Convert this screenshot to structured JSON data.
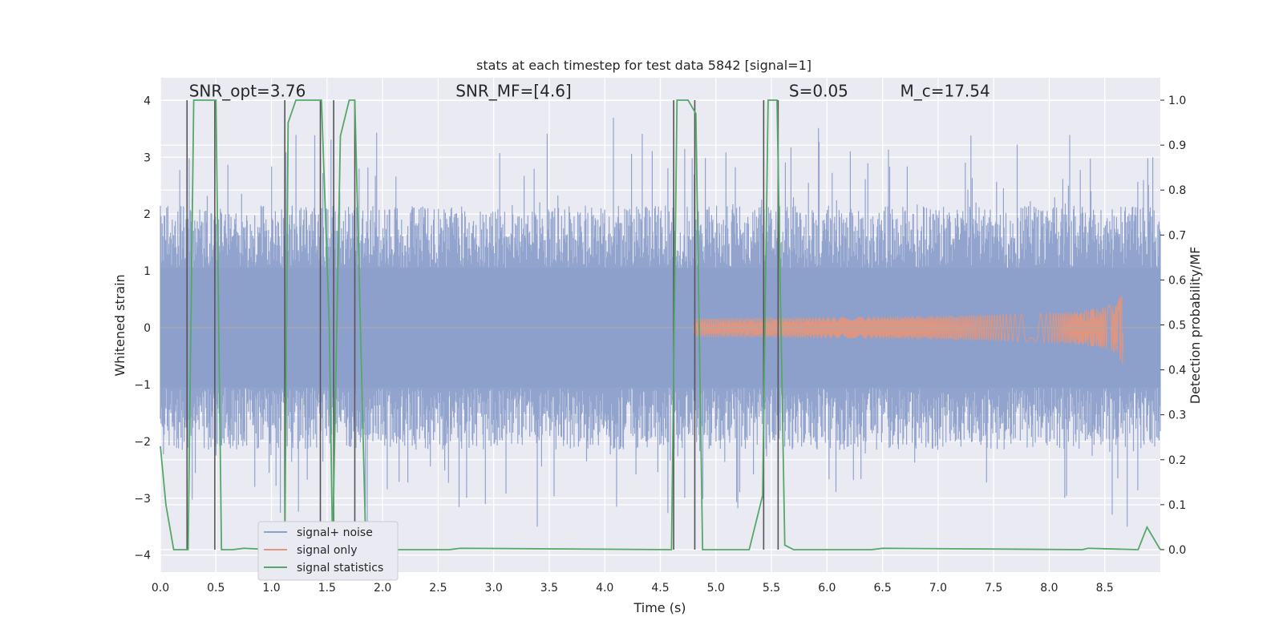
{
  "chart_data": {
    "type": "line",
    "title": "stats at each timestep for test data 5842 [signal=1]",
    "xlabel": "Time (s)",
    "ylabel": "Whitened strain",
    "y2label": "Detection probability/MF",
    "xlim": [
      0.0,
      9.0
    ],
    "ylim": [
      -4.3,
      4.4
    ],
    "y2lim": [
      -0.05,
      1.05
    ],
    "xticks": [
      "0.0",
      "0.5",
      "1.0",
      "1.5",
      "2.0",
      "2.5",
      "3.0",
      "3.5",
      "4.0",
      "4.5",
      "5.0",
      "5.5",
      "6.0",
      "6.5",
      "7.0",
      "7.5",
      "8.0",
      "8.5"
    ],
    "xtick_values": [
      0.0,
      0.5,
      1.0,
      1.5,
      2.0,
      2.5,
      3.0,
      3.5,
      4.0,
      4.5,
      5.0,
      5.5,
      6.0,
      6.5,
      7.0,
      7.5,
      8.0,
      8.5
    ],
    "yticks": [
      "−4",
      "−3",
      "−2",
      "−1",
      "0",
      "1",
      "2",
      "3",
      "4"
    ],
    "ytick_values": [
      -4,
      -3,
      -2,
      -1,
      0,
      1,
      2,
      3,
      4
    ],
    "y2ticks": [
      "0.0",
      "0.1",
      "0.2",
      "0.3",
      "0.4",
      "0.5",
      "0.6",
      "0.7",
      "0.8",
      "0.9",
      "1.0"
    ],
    "y2tick_values": [
      0.0,
      0.1,
      0.2,
      0.3,
      0.4,
      0.5,
      0.6,
      0.7,
      0.8,
      0.9,
      1.0
    ],
    "grid": true,
    "legend_position": "lower-left",
    "annotations": [
      {
        "label": "SNR_opt=3.76",
        "x": 0.2,
        "y": 4.1
      },
      {
        "label": "SNR_MF=[4.6]",
        "x": 2.6,
        "y": 4.1
      },
      {
        "label": "S=0.05",
        "x": 5.6,
        "y": 4.1
      },
      {
        "label": "M_c=17.54",
        "x": 6.6,
        "y": 4.1
      }
    ],
    "series": [
      {
        "name": "signal+ noise",
        "color": "#8da0cb",
        "kind": "noise",
        "x_range": [
          0.0,
          9.0
        ],
        "typical_peak": 2.2,
        "max_peak": 4.0
      },
      {
        "name": "signal only",
        "color": "#e5957a",
        "kind": "chirp",
        "x_start": 4.8,
        "x_end": 8.67,
        "peak_amplitude": 0.8
      },
      {
        "name": "signal statistics",
        "color": "#55a868",
        "axis": "right",
        "x": [
          0.0,
          0.05,
          0.12,
          0.25,
          0.3,
          0.5,
          0.55,
          0.65,
          0.75,
          1.0,
          1.12,
          1.15,
          1.22,
          1.45,
          1.52,
          1.55,
          1.62,
          1.7,
          1.75,
          1.85,
          2.0,
          2.6,
          2.7,
          4.6,
          4.65,
          4.75,
          4.82,
          4.88,
          5.3,
          5.42,
          5.47,
          5.55,
          5.62,
          5.7,
          6.4,
          6.5,
          8.3,
          8.35,
          8.8,
          8.88,
          9.0
        ],
        "y": [
          0.23,
          0.1,
          0.0,
          0.0,
          1.0,
          1.0,
          0.0,
          0.0,
          0.003,
          0.0,
          0.0,
          0.95,
          1.0,
          1.0,
          0.5,
          0.0,
          0.92,
          1.0,
          1.0,
          0.0,
          0.0,
          0.0,
          0.003,
          0.0,
          1.0,
          1.0,
          0.97,
          0.0,
          0.0,
          0.12,
          1.0,
          1.0,
          0.01,
          0.0,
          0.0,
          0.003,
          0.0,
          0.003,
          0.0,
          0.05,
          0.0
        ]
      },
      {
        "name": "",
        "color": "#555555",
        "kind": "markers",
        "axis": "right",
        "x": [
          0.24,
          0.49,
          1.12,
          1.44,
          1.56,
          1.75,
          4.62,
          4.81,
          5.43,
          5.56
        ],
        "y_top": 1.0,
        "y_bottom": 0.0
      }
    ]
  }
}
